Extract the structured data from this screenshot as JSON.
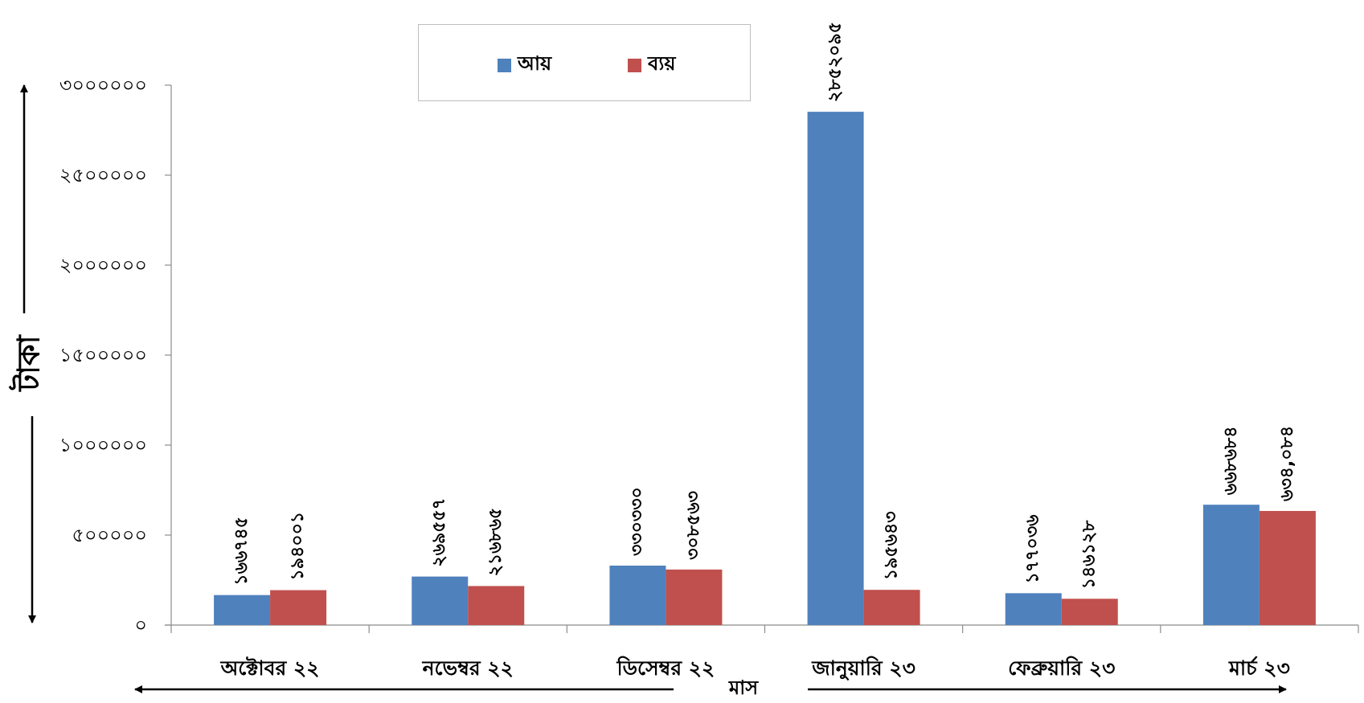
{
  "chart_data": {
    "type": "bar",
    "categories": [
      "অক্টোবর ২২",
      "নভেম্বর ২২",
      "ডিসেম্বর ২২",
      "জানুয়ারি ২৩",
      "ফেব্রুয়ারি ২৩",
      "মার্চ ২৩"
    ],
    "series": [
      {
        "name": "আয়",
        "color": "#4f81bd",
        "values": [
          166745,
          269557,
          330330,
          2852095,
          177036,
          668684
        ],
        "data_labels": [
          "১৬৬৭৪৫",
          "২৬৯৫৫৭",
          "৩৩০৩৩০",
          "২৮৫২০৯৫",
          "১৭৭০৩৬",
          "৬৬৮৬৮৪"
        ]
      },
      {
        "name": "ব্যয়",
        "color": "#c0504d",
        "values": [
          194001,
          216865,
          308563,
          195643,
          146128,
          634084
        ],
        "data_labels": [
          "১৯৪০০১",
          "২১৬৮৬৫",
          "৩০৮৫৬৩",
          "১৯৫৬৪৩",
          "১৪৬১২৮",
          "৬৩৪,০৮৪"
        ]
      }
    ],
    "y_ticks": [
      0,
      500000,
      1000000,
      1500000,
      2000000,
      2500000,
      3000000
    ],
    "y_tick_labels": [
      "০",
      "৫০০০০০",
      "১০০০০০০",
      "১৫০০০০০",
      "২০০০০০০",
      "২৫০০০০০",
      "৩০০০০০০"
    ],
    "ylim": [
      0,
      3000000
    ],
    "ylabel": "টাকা",
    "xlabel": "মাস",
    "legend": "top-center",
    "grid": false
  }
}
